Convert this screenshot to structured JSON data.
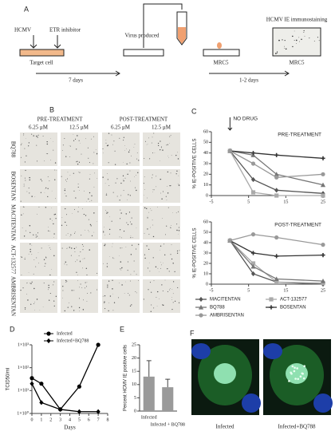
{
  "panel_labels": [
    "A",
    "B",
    "C",
    "D",
    "E",
    "F"
  ],
  "panel_a": {
    "virus": "HCMV",
    "inhibitor": "ETR inhibitor",
    "target": "Target cell",
    "period1": "7 days",
    "produced": "Virus produced",
    "cells1": "MRC5",
    "period2": "1-2 days",
    "staining": "HCMV IE immunostaining",
    "cells2": "MRC5"
  },
  "panel_b": {
    "groups": [
      "PRE-TREATMENT",
      "POST-TREATMENT"
    ],
    "doses": [
      "6.25 μM",
      "12.5 μM",
      "6.25 μM",
      "12.5 μM"
    ],
    "rows": [
      "BQ788",
      "BOSENTAN",
      "MACITENTAN",
      "ACT-132577",
      "AMBRISENTAN"
    ]
  },
  "panel_f": {
    "images": [
      "Infected",
      "Infected+BQ788"
    ]
  },
  "chart_data": [
    {
      "type": "line",
      "title": "PRE-TREATMENT",
      "annotation": "NO DRUG",
      "ylabel": "% IE-POSITIVE CELLS",
      "x": [
        0,
        6.25,
        12.5,
        25
      ],
      "xlim": [
        -5,
        25
      ],
      "xticks": [
        -5,
        5,
        15,
        25
      ],
      "ylim": [
        0,
        60
      ],
      "yticks": [
        0,
        10,
        20,
        30,
        40,
        50,
        60
      ],
      "series": [
        {
          "name": "MACITENTAN",
          "color": "#555",
          "marker": "diamond",
          "values": [
            42,
            15,
            5,
            2
          ]
        },
        {
          "name": "ACT-132577",
          "color": "#aaa",
          "marker": "square",
          "values": [
            42,
            3,
            0,
            0
          ]
        },
        {
          "name": "BQ788",
          "color": "#777",
          "marker": "triangle",
          "values": [
            42,
            38,
            20,
            10
          ]
        },
        {
          "name": "BOSENTAN",
          "color": "#333",
          "marker": "cross",
          "values": [
            42,
            40,
            38,
            35
          ]
        },
        {
          "name": "AMBRISENTAN",
          "color": "#999",
          "marker": "circle",
          "values": [
            42,
            30,
            17,
            20
          ]
        }
      ]
    },
    {
      "type": "line",
      "title": "POST-TREATMENT",
      "ylabel": "% IE-POSITIVE CELLS",
      "x": [
        0,
        6.25,
        12.5,
        25
      ],
      "xlim": [
        -5,
        25
      ],
      "xticks": [
        -5,
        5,
        15,
        25
      ],
      "ylim": [
        0,
        60
      ],
      "yticks": [
        0,
        10,
        20,
        30,
        40,
        50,
        60
      ],
      "series": [
        {
          "color": "#555",
          "marker": "diamond",
          "values": [
            42,
            10,
            2,
            0
          ]
        },
        {
          "color": "#aaa",
          "marker": "square",
          "values": [
            42,
            20,
            2,
            1
          ]
        },
        {
          "color": "#777",
          "marker": "triangle",
          "values": [
            42,
            17,
            5,
            3
          ]
        },
        {
          "color": "#333",
          "marker": "cross",
          "values": [
            42,
            30,
            27,
            28
          ]
        },
        {
          "color": "#999",
          "marker": "circle",
          "values": [
            42,
            48,
            45,
            38
          ]
        }
      ]
    },
    {
      "type": "line",
      "xlabel": "Days",
      "ylabel": "TCID50/ml",
      "log_y": true,
      "x": [
        0,
        1,
        3,
        5,
        7
      ],
      "xlim": [
        0,
        8
      ],
      "xticks": [
        0,
        1,
        2,
        3,
        4,
        5,
        6,
        7,
        8
      ],
      "ylim": [
        1,
        1000
      ],
      "yticks": [
        {
          "value": 1,
          "label": "1×10⁰"
        },
        {
          "value": 10,
          "label": "1×10¹"
        },
        {
          "value": 100,
          "label": "1×10²"
        },
        {
          "value": 1000,
          "label": "1×10³"
        }
      ],
      "series": [
        {
          "name": "Infected",
          "color": "#000",
          "marker": "circle",
          "values": [
            35,
            20,
            1.5,
            15,
            1000
          ]
        },
        {
          "name": "Infected+BQ788",
          "color": "#000",
          "marker": "diamond",
          "values": [
            20,
            3,
            1.5,
            1.2,
            1.2
          ]
        }
      ]
    },
    {
      "type": "bar",
      "ylabel": "Percent HCMV IE positive cells",
      "categories": [
        "Infected",
        "Infected + BQ788"
      ],
      "values": [
        13,
        9
      ],
      "errors": [
        6,
        3
      ],
      "color": "#9a9a9a",
      "ylim": [
        0,
        25
      ],
      "yticks": [
        0,
        5,
        10,
        15,
        20,
        25
      ]
    }
  ]
}
